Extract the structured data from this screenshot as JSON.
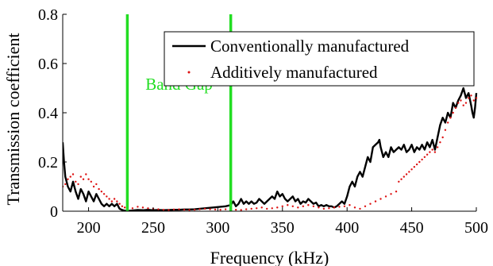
{
  "chart_data": {
    "type": "line",
    "xlabel": "Frequency (kHz)",
    "ylabel": "Transmission coefficient",
    "xlim": [
      180,
      500
    ],
    "ylim": [
      0,
      0.8
    ],
    "x_ticks": [
      200,
      250,
      300,
      350,
      400,
      450,
      500
    ],
    "x_tick_labels": [
      "200",
      "250",
      "300",
      "350",
      "400",
      "450",
      "500"
    ],
    "y_ticks": [
      0,
      0.2,
      0.4,
      0.6,
      0.8
    ],
    "y_tick_labels": [
      "0",
      "0.2",
      "0.4",
      "0.6",
      "0.8"
    ],
    "grid": false,
    "legend_position": "top-right",
    "annotations": [
      {
        "text": "Band Gap",
        "x": 270,
        "y": 0.48,
        "color": "#22dd22"
      }
    ],
    "vertical_lines": [
      {
        "x": 230,
        "color": "#22dd22"
      },
      {
        "x": 310,
        "color": "#22dd22"
      }
    ],
    "series": [
      {
        "name": "Conventionally manufactured",
        "style": "solid",
        "color": "#000000",
        "points": [
          [
            180,
            0.28
          ],
          [
            181,
            0.2
          ],
          [
            182,
            0.14
          ],
          [
            184,
            0.1
          ],
          [
            186,
            0.08
          ],
          [
            188,
            0.12
          ],
          [
            190,
            0.08
          ],
          [
            192,
            0.05
          ],
          [
            194,
            0.09
          ],
          [
            196,
            0.07
          ],
          [
            198,
            0.04
          ],
          [
            200,
            0.08
          ],
          [
            202,
            0.06
          ],
          [
            204,
            0.04
          ],
          [
            206,
            0.07
          ],
          [
            208,
            0.05
          ],
          [
            210,
            0.03
          ],
          [
            212,
            0.02
          ],
          [
            214,
            0.03
          ],
          [
            216,
            0.02
          ],
          [
            218,
            0.03
          ],
          [
            220,
            0.02
          ],
          [
            222,
            0.03
          ],
          [
            224,
            0.01
          ],
          [
            226,
            0.005
          ],
          [
            228,
            0.002
          ],
          [
            230,
            0.001
          ],
          [
            234,
            0.003
          ],
          [
            238,
            0.005
          ],
          [
            242,
            0.004
          ],
          [
            246,
            0.006
          ],
          [
            250,
            0.004
          ],
          [
            254,
            0.005
          ],
          [
            258,
            0.004
          ],
          [
            262,
            0.005
          ],
          [
            266,
            0.006
          ],
          [
            270,
            0.006
          ],
          [
            274,
            0.007
          ],
          [
            278,
            0.007
          ],
          [
            282,
            0.008
          ],
          [
            286,
            0.01
          ],
          [
            290,
            0.012
          ],
          [
            294,
            0.014
          ],
          [
            298,
            0.016
          ],
          [
            302,
            0.018
          ],
          [
            306,
            0.02
          ],
          [
            310,
            0.025
          ],
          [
            312,
            0.04
          ],
          [
            314,
            0.02
          ],
          [
            316,
            0.03
          ],
          [
            318,
            0.05
          ],
          [
            320,
            0.03
          ],
          [
            322,
            0.04
          ],
          [
            324,
            0.03
          ],
          [
            326,
            0.04
          ],
          [
            328,
            0.03
          ],
          [
            330,
            0.035
          ],
          [
            332,
            0.05
          ],
          [
            334,
            0.04
          ],
          [
            336,
            0.03
          ],
          [
            338,
            0.04
          ],
          [
            340,
            0.05
          ],
          [
            342,
            0.06
          ],
          [
            344,
            0.05
          ],
          [
            346,
            0.08
          ],
          [
            348,
            0.06
          ],
          [
            350,
            0.07
          ],
          [
            352,
            0.05
          ],
          [
            354,
            0.04
          ],
          [
            356,
            0.05
          ],
          [
            358,
            0.06
          ],
          [
            360,
            0.04
          ],
          [
            362,
            0.05
          ],
          [
            364,
            0.03
          ],
          [
            366,
            0.04
          ],
          [
            368,
            0.035
          ],
          [
            370,
            0.05
          ],
          [
            372,
            0.04
          ],
          [
            374,
            0.03
          ],
          [
            376,
            0.035
          ],
          [
            378,
            0.02
          ],
          [
            380,
            0.025
          ],
          [
            382,
            0.02
          ],
          [
            384,
            0.025
          ],
          [
            386,
            0.02
          ],
          [
            388,
            0.02
          ],
          [
            390,
            0.015
          ],
          [
            392,
            0.02
          ],
          [
            394,
            0.03
          ],
          [
            396,
            0.04
          ],
          [
            398,
            0.03
          ],
          [
            400,
            0.06
          ],
          [
            402,
            0.1
          ],
          [
            404,
            0.12
          ],
          [
            406,
            0.1
          ],
          [
            408,
            0.14
          ],
          [
            410,
            0.16
          ],
          [
            412,
            0.14
          ],
          [
            414,
            0.18
          ],
          [
            416,
            0.22
          ],
          [
            418,
            0.2
          ],
          [
            420,
            0.26
          ],
          [
            422,
            0.27
          ],
          [
            424,
            0.28
          ],
          [
            425,
            0.29
          ],
          [
            426,
            0.26
          ],
          [
            428,
            0.22
          ],
          [
            430,
            0.24
          ],
          [
            432,
            0.22
          ],
          [
            434,
            0.26
          ],
          [
            436,
            0.24
          ],
          [
            438,
            0.25
          ],
          [
            440,
            0.26
          ],
          [
            442,
            0.25
          ],
          [
            444,
            0.27
          ],
          [
            446,
            0.24
          ],
          [
            448,
            0.25
          ],
          [
            450,
            0.27
          ],
          [
            452,
            0.24
          ],
          [
            454,
            0.26
          ],
          [
            456,
            0.25
          ],
          [
            458,
            0.27
          ],
          [
            460,
            0.25
          ],
          [
            462,
            0.28
          ],
          [
            464,
            0.26
          ],
          [
            466,
            0.29
          ],
          [
            468,
            0.25
          ],
          [
            470,
            0.3
          ],
          [
            472,
            0.35
          ],
          [
            474,
            0.38
          ],
          [
            476,
            0.36
          ],
          [
            478,
            0.4
          ],
          [
            480,
            0.38
          ],
          [
            482,
            0.44
          ],
          [
            484,
            0.42
          ],
          [
            486,
            0.45
          ],
          [
            488,
            0.47
          ],
          [
            490,
            0.5
          ],
          [
            492,
            0.46
          ],
          [
            494,
            0.48
          ],
          [
            496,
            0.43
          ],
          [
            497,
            0.4
          ],
          [
            498,
            0.38
          ],
          [
            499,
            0.42
          ],
          [
            500,
            0.48
          ]
        ]
      },
      {
        "name": "Additively manufactured",
        "style": "dotted",
        "color": "#dd1111",
        "points": [
          [
            180,
            0.1
          ],
          [
            182,
            0.11
          ],
          [
            184,
            0.13
          ],
          [
            186,
            0.14
          ],
          [
            188,
            0.15
          ],
          [
            190,
            0.12
          ],
          [
            192,
            0.11
          ],
          [
            194,
            0.14
          ],
          [
            196,
            0.13
          ],
          [
            198,
            0.15
          ],
          [
            200,
            0.13
          ],
          [
            202,
            0.12
          ],
          [
            204,
            0.1
          ],
          [
            206,
            0.11
          ],
          [
            208,
            0.09
          ],
          [
            210,
            0.08
          ],
          [
            212,
            0.07
          ],
          [
            214,
            0.06
          ],
          [
            216,
            0.05
          ],
          [
            218,
            0.04
          ],
          [
            220,
            0.05
          ],
          [
            222,
            0.04
          ],
          [
            224,
            0.03
          ],
          [
            226,
            0.02
          ],
          [
            228,
            0.015
          ],
          [
            230,
            0.01
          ],
          [
            234,
            0.012
          ],
          [
            238,
            0.018
          ],
          [
            242,
            0.015
          ],
          [
            246,
            0.012
          ],
          [
            250,
            0.01
          ],
          [
            254,
            0.008
          ],
          [
            258,
            0.006
          ],
          [
            262,
            0.005
          ],
          [
            266,
            0.007
          ],
          [
            270,
            0.008
          ],
          [
            274,
            0.006
          ],
          [
            278,
            0.005
          ],
          [
            282,
            0.006
          ],
          [
            286,
            0.008
          ],
          [
            290,
            0.01
          ],
          [
            294,
            0.008
          ],
          [
            298,
            0.007
          ],
          [
            302,
            0.006
          ],
          [
            306,
            0.008
          ],
          [
            310,
            0.01
          ],
          [
            314,
            0.006
          ],
          [
            318,
            0.005
          ],
          [
            322,
            0.008
          ],
          [
            326,
            0.01
          ],
          [
            330,
            0.012
          ],
          [
            334,
            0.015
          ],
          [
            338,
            0.01
          ],
          [
            342,
            0.012
          ],
          [
            346,
            0.015
          ],
          [
            350,
            0.02
          ],
          [
            354,
            0.025
          ],
          [
            358,
            0.02
          ],
          [
            362,
            0.015
          ],
          [
            366,
            0.02
          ],
          [
            370,
            0.025
          ],
          [
            374,
            0.02
          ],
          [
            378,
            0.015
          ],
          [
            382,
            0.01
          ],
          [
            386,
            0.012
          ],
          [
            390,
            0.015
          ],
          [
            394,
            0.018
          ],
          [
            398,
            0.02
          ],
          [
            402,
            0.025
          ],
          [
            406,
            0.015
          ],
          [
            410,
            0.01
          ],
          [
            414,
            0.02
          ],
          [
            418,
            0.03
          ],
          [
            422,
            0.04
          ],
          [
            426,
            0.05
          ],
          [
            430,
            0.06
          ],
          [
            434,
            0.07
          ],
          [
            438,
            0.08
          ],
          [
            440,
            0.12
          ],
          [
            442,
            0.13
          ],
          [
            444,
            0.14
          ],
          [
            446,
            0.15
          ],
          [
            448,
            0.16
          ],
          [
            450,
            0.17
          ],
          [
            452,
            0.18
          ],
          [
            454,
            0.19
          ],
          [
            456,
            0.2
          ],
          [
            458,
            0.21
          ],
          [
            460,
            0.22
          ],
          [
            462,
            0.23
          ],
          [
            464,
            0.24
          ],
          [
            466,
            0.25
          ],
          [
            468,
            0.24
          ],
          [
            470,
            0.26
          ],
          [
            472,
            0.28
          ],
          [
            474,
            0.3
          ],
          [
            476,
            0.33
          ],
          [
            478,
            0.36
          ],
          [
            480,
            0.38
          ],
          [
            482,
            0.4
          ],
          [
            484,
            0.42
          ],
          [
            486,
            0.44
          ],
          [
            488,
            0.45
          ],
          [
            490,
            0.43
          ],
          [
            492,
            0.44
          ],
          [
            494,
            0.46
          ],
          [
            496,
            0.47
          ],
          [
            498,
            0.45
          ],
          [
            500,
            0.46
          ]
        ]
      }
    ]
  }
}
